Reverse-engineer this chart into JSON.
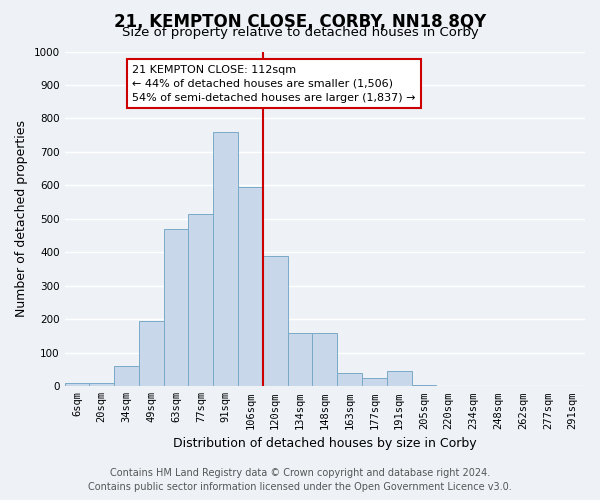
{
  "title": "21, KEMPTON CLOSE, CORBY, NN18 8QY",
  "subtitle": "Size of property relative to detached houses in Corby",
  "xlabel": "Distribution of detached houses by size in Corby",
  "ylabel": "Number of detached properties",
  "bar_labels": [
    "6sqm",
    "20sqm",
    "34sqm",
    "49sqm",
    "63sqm",
    "77sqm",
    "91sqm",
    "106sqm",
    "120sqm",
    "134sqm",
    "148sqm",
    "163sqm",
    "177sqm",
    "191sqm",
    "205sqm",
    "220sqm",
    "234sqm",
    "248sqm",
    "262sqm",
    "277sqm",
    "291sqm"
  ],
  "bar_values": [
    10,
    10,
    60,
    195,
    470,
    515,
    760,
    595,
    390,
    160,
    160,
    40,
    25,
    45,
    5,
    0,
    0,
    0,
    0,
    0,
    0
  ],
  "bar_color": "#c8d8ea",
  "bar_edge_color": "#7aaac8",
  "vline_color": "#cc0000",
  "vline_x": 7.5,
  "annotation_text": "21 KEMPTON CLOSE: 112sqm\n← 44% of detached houses are smaller (1,506)\n54% of semi-detached houses are larger (1,837) →",
  "annotation_box_facecolor": "#ffffff",
  "annotation_box_edgecolor": "#cc0000",
  "ylim": [
    0,
    1000
  ],
  "yticks": [
    0,
    100,
    200,
    300,
    400,
    500,
    600,
    700,
    800,
    900,
    1000
  ],
  "bg_color": "#eef2f7",
  "plot_bg_color": "#eef2f7",
  "grid_color": "#ffffff",
  "title_fontsize": 12,
  "subtitle_fontsize": 9.5,
  "axis_label_fontsize": 9,
  "tick_fontsize": 7.5,
  "annotation_fontsize": 8,
  "footer_fontsize": 7,
  "footer_line1": "Contains HM Land Registry data © Crown copyright and database right 2024.",
  "footer_line2": "Contains public sector information licensed under the Open Government Licence v3.0."
}
